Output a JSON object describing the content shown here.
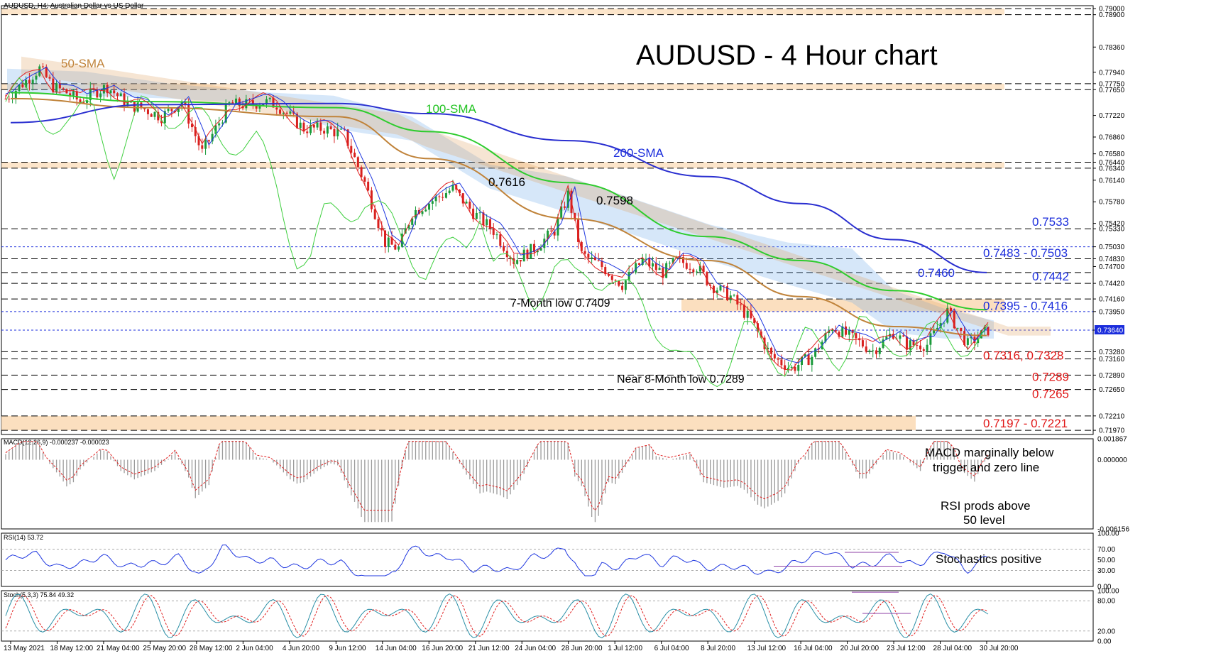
{
  "header": {
    "symbol_info": "AUDUSD, H4:  Australian Dollar vs US Dollar",
    "title": "AUDUSD - 4 Hour chart"
  },
  "colors": {
    "bull": "#1a9a3a",
    "bear": "#d8201e",
    "sma50": "#c0833a",
    "sma100": "#2ecc2e",
    "sma200": "#2a2fd0",
    "tenkan": "#e02020",
    "kijun": "#2038e0",
    "chikou": "#3ecf3e",
    "cloud_blue": "#6aa8e8",
    "cloud_orange": "#e0a060",
    "zone_fill": "#fbdcb8",
    "label_blue": "#1b2ddc",
    "label_red": "#e01818",
    "label_green": "#22c322",
    "label_orange": "#c0833a"
  },
  "chart_data": [
    {
      "type": "line",
      "panel": "price",
      "title": "AUDUSD - 4 Hour chart",
      "ylim": [
        0.719,
        0.7905
      ],
      "y_tick_labels": [
        "0.79000",
        "0.78900",
        "0.78360",
        "0.77940",
        "0.77750",
        "0.77650",
        "0.77220",
        "0.76860",
        "0.76580",
        "0.76440",
        "0.76340",
        "0.76140",
        "0.75780",
        "0.75420",
        "0.75330",
        "0.75030",
        "0.74830",
        "0.74700",
        "0.74420",
        "0.74160",
        "0.73950",
        "0.73640",
        "0.73280",
        "0.73160",
        "0.72890",
        "0.72650",
        "0.72210",
        "0.71970"
      ],
      "x_tick_labels": [
        "13 May 2021",
        "18 May 12:00",
        "21 May 04:00",
        "25 May 20:00",
        "28 May 12:00",
        "2 Jun 04:00",
        "4 Jun 20:00",
        "9 Jun 12:00",
        "14 Jun 04:00",
        "16 Jun 20:00",
        "21 Jun 12:00",
        "24 Jun 04:00",
        "28 Jun 20:00",
        "1 Jul 12:00",
        "6 Jul 04:00",
        "8 Jul 20:00",
        "13 Jul 12:00",
        "16 Jul 04:00",
        "20 Jul 20:00",
        "23 Jul 12:00",
        "28 Jul 04:00",
        "30 Jul 20:00"
      ],
      "current_price": 0.7364,
      "series": [
        {
          "name": "50-SMA",
          "x": [
            "13 May 2021",
            "25 May 20:00",
            "9 Jun 12:00",
            "16 Jun 20:00",
            "28 Jun 20:00",
            "8 Jul 20:00",
            "16 Jul 04:00",
            "23 Jul 12:00",
            "30 Jul 20:00"
          ],
          "values": [
            0.775,
            0.7735,
            0.772,
            0.765,
            0.755,
            0.748,
            0.742,
            0.737,
            0.7355
          ]
        },
        {
          "name": "100-SMA",
          "x": [
            "13 May 2021",
            "25 May 20:00",
            "9 Jun 12:00",
            "16 Jun 20:00",
            "28 Jun 20:00",
            "8 Jul 20:00",
            "16 Jul 04:00",
            "23 Jul 12:00",
            "30 Jul 20:00"
          ],
          "values": [
            0.776,
            0.7745,
            0.7735,
            0.7695,
            0.761,
            0.752,
            0.748,
            0.743,
            0.7398
          ]
        },
        {
          "name": "200-SMA",
          "x": [
            "13 May 2021",
            "25 May 20:00",
            "9 Jun 12:00",
            "16 Jun 20:00",
            "28 Jun 20:00",
            "8 Jul 20:00",
            "16 Jul 04:00",
            "23 Jul 12:00",
            "30 Jul 20:00"
          ],
          "values": [
            0.771,
            0.774,
            0.7742,
            0.7725,
            0.768,
            0.762,
            0.7575,
            0.7515,
            0.746
          ]
        }
      ],
      "annotations": {
        "sma50": "50-SMA",
        "sma100": "100-SMA",
        "sma200": "200-SMA",
        "high_7616": "0.7616",
        "high_7598": "0.7598",
        "low_7409": "7-Month low 0.7409",
        "low_7289": "Near 8-Month low 0.7289"
      },
      "levels": [
        {
          "low": 0.789,
          "high": 0.79,
          "label": "",
          "style": "zone"
        },
        {
          "low": 0.7765,
          "high": 0.7775,
          "label": "",
          "style": "zone"
        },
        {
          "low": 0.7634,
          "high": 0.7644,
          "label": "",
          "style": "zone"
        },
        {
          "value": 0.7533,
          "label": "0.7533",
          "color": "blue"
        },
        {
          "low": 0.7483,
          "high": 0.7503,
          "label": "0.7483 - 0.7503",
          "color": "blue"
        },
        {
          "value": 0.746,
          "label": "0.7460",
          "color": "blue"
        },
        {
          "value": 0.7442,
          "label": "0.7442",
          "color": "blue"
        },
        {
          "low": 0.7395,
          "high": 0.7416,
          "label": "0.7395 - 0.7416",
          "color": "blue"
        },
        {
          "value": 0.7364,
          "label": "",
          "color": "blue"
        },
        {
          "low": 0.7316,
          "high": 0.7328,
          "label": "0.7316, 0.7328",
          "color": "red"
        },
        {
          "value": 0.7289,
          "label": "0.7289",
          "color": "red"
        },
        {
          "value": 0.7265,
          "label": "0.7265",
          "color": "red"
        },
        {
          "low": 0.7197,
          "high": 0.7221,
          "label": "0.7197 - 0.7221",
          "color": "red"
        }
      ],
      "candles_close_path": {
        "x_index": [
          0,
          6,
          10,
          14,
          18,
          22,
          26,
          30,
          36,
          40,
          46,
          52,
          58,
          66,
          72,
          76,
          80,
          88,
          94,
          100,
          106,
          112,
          116,
          120,
          126,
          132,
          138,
          144,
          150,
          156,
          162,
          166,
          170,
          176,
          182,
          188,
          194,
          198,
          204,
          208,
          214,
          220,
          226,
          232,
          238,
          244,
          250,
          256,
          262,
          266,
          272,
          278,
          284,
          290
        ],
        "values": [
          0.775,
          0.778,
          0.78,
          0.777,
          0.776,
          0.7745,
          0.776,
          0.777,
          0.774,
          0.7735,
          0.772,
          0.7745,
          0.766,
          0.774,
          0.774,
          0.7745,
          0.774,
          0.77,
          0.77,
          0.769,
          0.761,
          0.751,
          0.75,
          0.756,
          0.758,
          0.76,
          0.756,
          0.753,
          0.748,
          0.75,
          0.753,
          0.759,
          0.749,
          0.747,
          0.744,
          0.748,
          0.746,
          0.748,
          0.747,
          0.744,
          0.742,
          0.738,
          0.732,
          0.73,
          0.732,
          0.737,
          0.735,
          0.733,
          0.736,
          0.734,
          0.734,
          0.7395,
          0.734,
          0.7364
        ]
      }
    },
    {
      "type": "bar",
      "panel": "macd",
      "legend": "MACD(12,26,9) -0.000237 -0.000023",
      "y_tick_labels": [
        "0.001867",
        "0.000000",
        "-0.006156"
      ],
      "ylim": [
        -0.006156,
        0.001867
      ],
      "annotation": [
        "MACD marginally below",
        "trigger and zero line"
      ]
    },
    {
      "type": "line",
      "panel": "rsi",
      "legend": "RSI(14) 53.72",
      "y_tick_labels": [
        "100.00",
        "70.00",
        "50.00",
        "30.00",
        "0.00"
      ],
      "ylim": [
        0,
        100
      ],
      "last_value": 53.72,
      "annotation": [
        "RSI prods above",
        "50 level"
      ]
    },
    {
      "type": "line",
      "panel": "stochastics",
      "legend": "Stoch(5,3,3) 75.84 49.32",
      "y_tick_labels": [
        "100.00",
        "80.00",
        "20.00",
        "0.00"
      ],
      "ylim": [
        0,
        100
      ],
      "last_values": [
        75.84,
        49.32
      ],
      "annotation": [
        "Stochastics positive"
      ]
    }
  ]
}
